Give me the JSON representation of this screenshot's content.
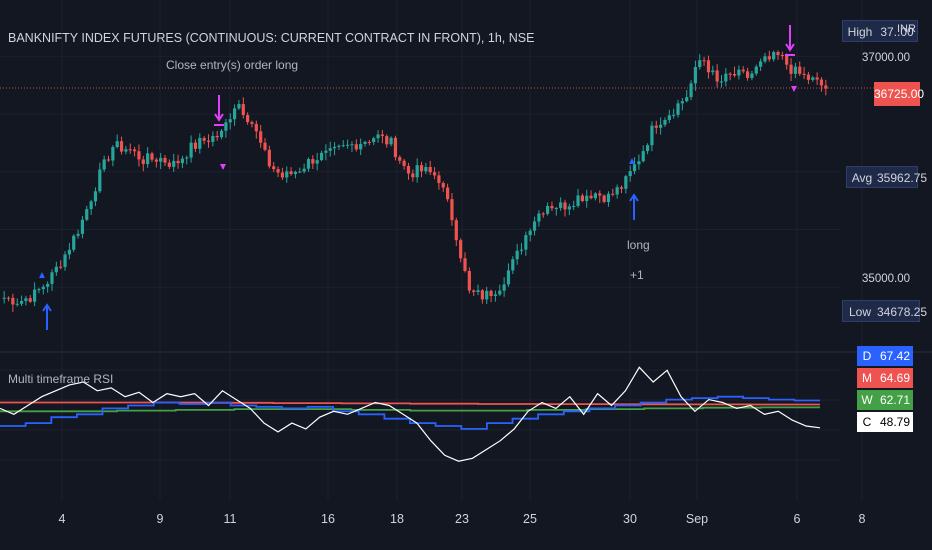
{
  "header": {
    "symbol_title": "BANKNIFTY INDEX FUTURES (CONTINUOUS: CURRENT CONTRACT IN FRONT), 1h, NSE"
  },
  "annotations": {
    "close_entry": "Close entry(s) order long",
    "long_label": "long",
    "long_qty": "+1"
  },
  "price_axis": {
    "currency": "INR",
    "high_label": "High",
    "high_value": "37..00",
    "level_37000": "37000.00",
    "current_price": "36725.00",
    "avg_label": "Avg",
    "avg_value": "35962.75",
    "level_35000": "35000.00",
    "low_label": "Low",
    "low_value": "34678.25"
  },
  "indicator": {
    "title": "Multi timeframe RSI",
    "rows": [
      {
        "key": "D",
        "value": "67.42",
        "color": "#2962ff",
        "text_color": "#ffffff"
      },
      {
        "key": "M",
        "value": "64.69",
        "color": "#ef5350",
        "text_color": "#ffffff"
      },
      {
        "key": "W",
        "value": "62.71",
        "color": "#43a047",
        "text_color": "#ffffff"
      },
      {
        "key": "C",
        "value": "48.79",
        "color": "#ffffff",
        "text_color": "#000000"
      }
    ]
  },
  "x_axis": {
    "labels": [
      "4",
      "9",
      "11",
      "16",
      "18",
      "23",
      "25",
      "30",
      "Sep",
      "6",
      "8"
    ]
  },
  "chart_data": {
    "type": "candlestick",
    "title": "BANKNIFTY INDEX FUTURES (CONTINUOUS: CURRENT CONTRACT IN FRONT), 1h, NSE",
    "x_tick_labels": [
      "4",
      "9",
      "11",
      "16",
      "18",
      "23",
      "25",
      "30",
      "Sep",
      "6",
      "8"
    ],
    "y_tick_labels": [
      "37000.00",
      "35000.00"
    ],
    "ylim": [
      34500,
      37400
    ],
    "price_levels": {
      "high": "37..00",
      "current": 36725.0,
      "avg": 35962.75,
      "low": 34678.25
    },
    "price_path": [
      34910,
      34880,
      34940,
      35080,
      35300,
      35560,
      35920,
      36220,
      36200,
      36100,
      36120,
      36060,
      36200,
      36280,
      36320,
      36620,
      36420,
      36080,
      35950,
      36020,
      36120,
      36150,
      36210,
      36260,
      36310,
      36240,
      35990,
      36010,
      35960,
      35560,
      34950,
      34920,
      35020,
      35250,
      35560,
      35720,
      35700,
      35780,
      35820,
      35780,
      35890,
      36130,
      36420,
      36520,
      36650,
      37010,
      36760,
      36840,
      36820,
      36950,
      37000,
      36860,
      36800,
      36725
    ],
    "signals": [
      {
        "type": "long",
        "text": "long",
        "qty": "+1",
        "position": "below"
      },
      {
        "type": "close",
        "text": "Close entry(s) order long",
        "position": "above"
      },
      {
        "type": "long",
        "text": "long",
        "qty": "+1",
        "position": "below"
      },
      {
        "type": "close",
        "text": "",
        "position": "above"
      }
    ],
    "indicator": {
      "name": "Multi timeframe RSI",
      "current": {
        "D": 67.42,
        "M": 64.69,
        "W": 62.71,
        "C": 48.79
      },
      "series": [
        {
          "key": "C",
          "color": "#ffffff",
          "values": [
            62,
            58,
            64,
            70,
            74,
            78,
            80,
            74,
            76,
            70,
            73,
            66,
            72,
            70,
            72,
            64,
            74,
            68,
            62,
            52,
            46,
            52,
            48,
            56,
            60,
            58,
            62,
            66,
            64,
            58,
            52,
            40,
            30,
            26,
            28,
            34,
            40,
            48,
            60,
            66,
            62,
            70,
            58,
            72,
            64,
            74,
            90,
            80,
            88,
            70,
            60,
            68,
            66,
            62,
            64,
            58,
            60,
            54,
            50,
            48.79
          ]
        },
        {
          "key": "D",
          "color": "#2962ff",
          "values": [
            50,
            52,
            56,
            58,
            62,
            64,
            66,
            65,
            66,
            64,
            63,
            62,
            63,
            60,
            58,
            55,
            52,
            50,
            48,
            52,
            55,
            58,
            60,
            62,
            64,
            66,
            68,
            69,
            70,
            69,
            68,
            67.42
          ]
        },
        {
          "key": "M",
          "color": "#ef5350",
          "values": [
            66,
            66,
            66,
            65.8,
            65.6,
            65.4,
            65.2,
            65,
            64.9,
            64.8,
            64.7,
            64.69
          ]
        },
        {
          "key": "W",
          "color": "#43a047",
          "values": [
            60,
            60,
            60.5,
            61,
            61.5,
            61.5,
            61,
            60.5,
            60.5,
            61,
            61.5,
            62,
            62.5,
            62.71
          ]
        }
      ]
    }
  }
}
